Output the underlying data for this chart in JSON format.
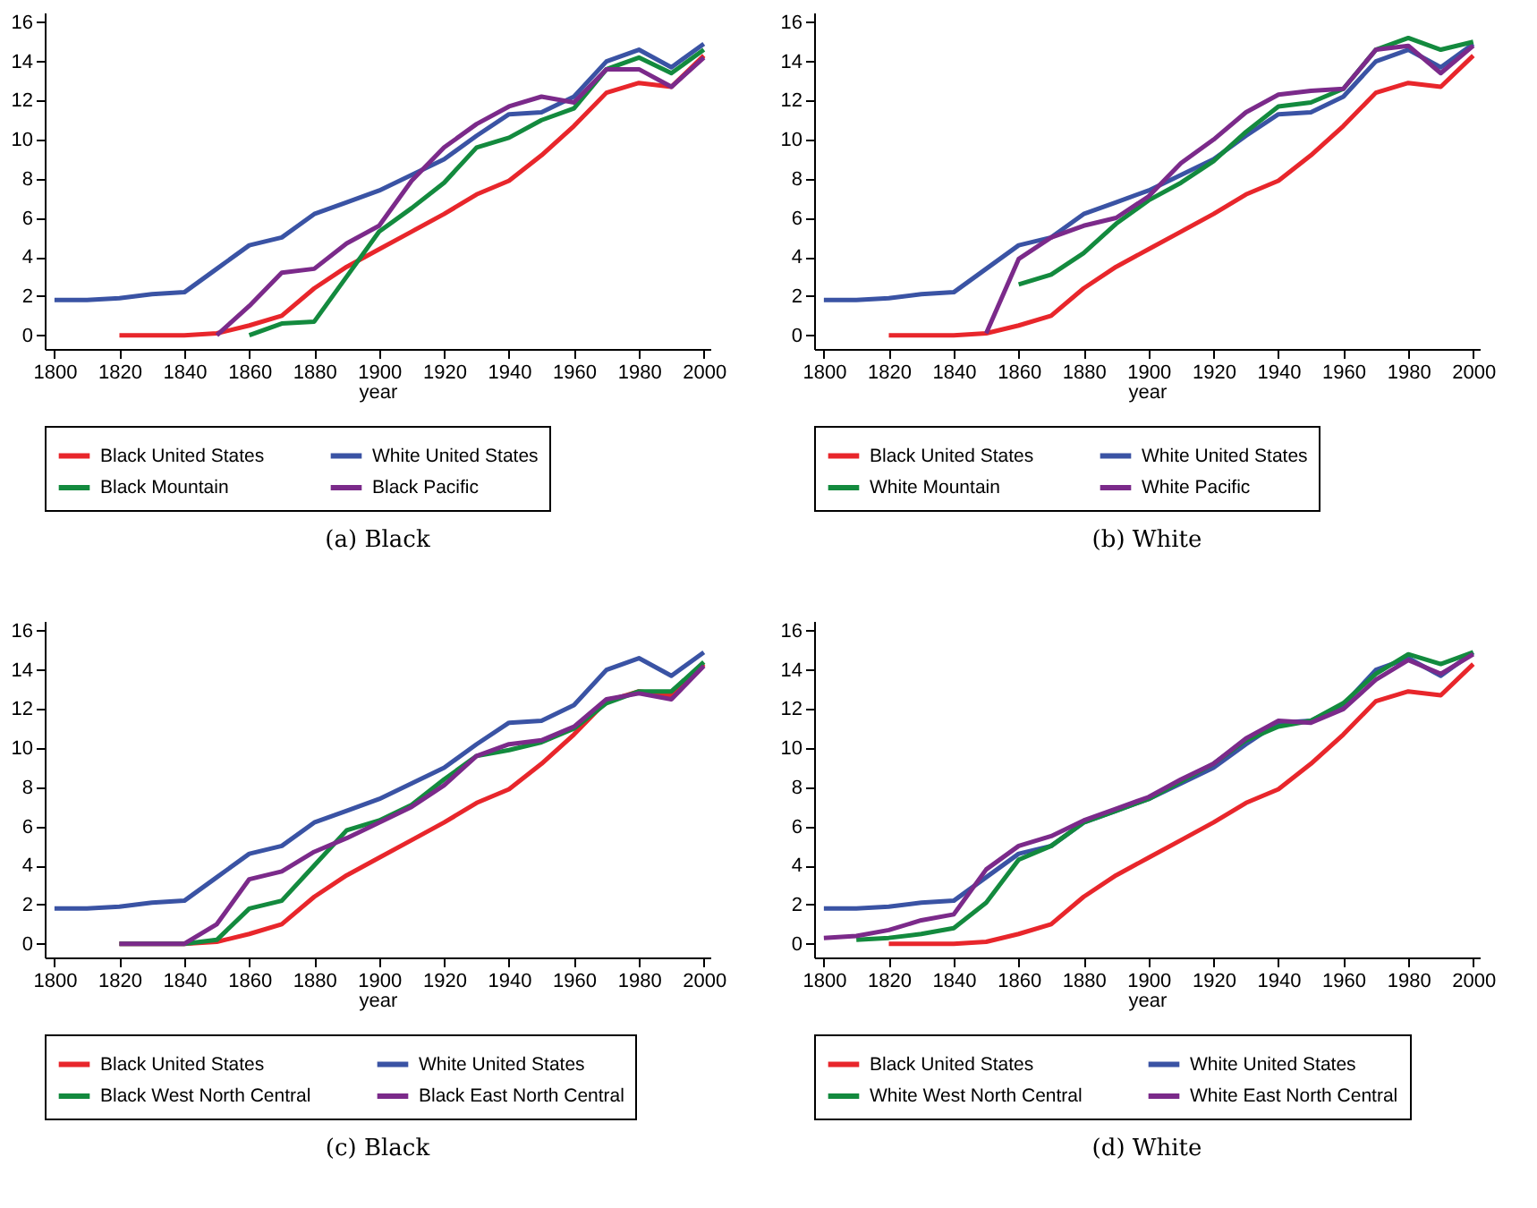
{
  "chart_data": [
    {
      "type": "line",
      "title": "(a) Black",
      "xlabel": "year",
      "x": [
        1800,
        1810,
        1820,
        1830,
        1840,
        1850,
        1860,
        1870,
        1880,
        1890,
        1900,
        1910,
        1920,
        1930,
        1940,
        1950,
        1960,
        1970,
        1980,
        1990,
        2000
      ],
      "xlim": [
        1797,
        2002
      ],
      "xticks": [
        1800,
        1820,
        1840,
        1860,
        1880,
        1900,
        1920,
        1940,
        1960,
        1980,
        2000
      ],
      "ylim": [
        -0.7,
        16.5
      ],
      "yticks": [
        0,
        2,
        4,
        6,
        8,
        10,
        12,
        14,
        16
      ],
      "grid": false,
      "legend": "bottom",
      "line_style": "solid",
      "marker": "none",
      "series": [
        {
          "name": "Black United States",
          "color": "#e8262b",
          "values": [
            null,
            null,
            0,
            0,
            0,
            0.1,
            0.5,
            1.0,
            2.4,
            3.5,
            4.4,
            5.3,
            6.2,
            7.2,
            7.9,
            9.2,
            10.7,
            12.4,
            12.9,
            12.7,
            14.3
          ]
        },
        {
          "name": "White United States",
          "color": "#3a53a4",
          "values": [
            1.8,
            1.8,
            1.9,
            2.1,
            2.2,
            3.4,
            4.6,
            5.0,
            6.2,
            6.8,
            7.4,
            8.2,
            9.0,
            10.2,
            11.3,
            11.4,
            12.2,
            14.0,
            14.6,
            13.7,
            14.9
          ]
        },
        {
          "name": "Black Mountain",
          "color": "#138a3e",
          "values": [
            null,
            null,
            null,
            null,
            null,
            null,
            0,
            0.6,
            0.7,
            3.0,
            5.3,
            6.5,
            7.8,
            9.6,
            10.1,
            11.0,
            11.6,
            13.6,
            14.2,
            13.4,
            14.6
          ]
        },
        {
          "name": "Black Pacific",
          "color": "#7b2a8a",
          "values": [
            null,
            null,
            null,
            null,
            null,
            0,
            1.5,
            3.2,
            3.4,
            4.7,
            5.6,
            7.9,
            9.6,
            10.8,
            11.7,
            12.2,
            11.9,
            13.6,
            13.6,
            12.7,
            14.2
          ]
        }
      ]
    },
    {
      "type": "line",
      "title": "(b) White",
      "xlabel": "year",
      "x": [
        1800,
        1810,
        1820,
        1830,
        1840,
        1850,
        1860,
        1870,
        1880,
        1890,
        1900,
        1910,
        1920,
        1930,
        1940,
        1950,
        1960,
        1970,
        1980,
        1990,
        2000
      ],
      "xlim": [
        1797,
        2002
      ],
      "xticks": [
        1800,
        1820,
        1840,
        1860,
        1880,
        1900,
        1920,
        1940,
        1960,
        1980,
        2000
      ],
      "ylim": [
        -0.7,
        16.5
      ],
      "yticks": [
        0,
        2,
        4,
        6,
        8,
        10,
        12,
        14,
        16
      ],
      "grid": false,
      "legend": "bottom",
      "line_style": "solid",
      "marker": "none",
      "series": [
        {
          "name": "Black United States",
          "color": "#e8262b",
          "values": [
            null,
            null,
            0,
            0,
            0,
            0.1,
            0.5,
            1.0,
            2.4,
            3.5,
            4.4,
            5.3,
            6.2,
            7.2,
            7.9,
            9.2,
            10.7,
            12.4,
            12.9,
            12.7,
            14.3
          ]
        },
        {
          "name": "White United States",
          "color": "#3a53a4",
          "values": [
            1.8,
            1.8,
            1.9,
            2.1,
            2.2,
            3.4,
            4.6,
            5.0,
            6.2,
            6.8,
            7.4,
            8.2,
            9.0,
            10.2,
            11.3,
            11.4,
            12.2,
            14.0,
            14.6,
            13.7,
            14.9
          ]
        },
        {
          "name": "White Mountain",
          "color": "#138a3e",
          "values": [
            null,
            null,
            null,
            null,
            null,
            null,
            2.6,
            3.1,
            4.2,
            5.7,
            6.9,
            7.8,
            8.9,
            10.4,
            11.7,
            11.9,
            12.6,
            14.6,
            15.2,
            14.6,
            15.0
          ]
        },
        {
          "name": "White Pacific",
          "color": "#7b2a8a",
          "values": [
            null,
            null,
            null,
            null,
            null,
            0.1,
            3.9,
            5.0,
            5.6,
            6.0,
            7.1,
            8.8,
            10.0,
            11.4,
            12.3,
            12.5,
            12.6,
            14.6,
            14.8,
            13.4,
            14.8
          ]
        }
      ]
    },
    {
      "type": "line",
      "title": "(c) Black",
      "xlabel": "year",
      "x": [
        1800,
        1810,
        1820,
        1830,
        1840,
        1850,
        1860,
        1870,
        1880,
        1890,
        1900,
        1910,
        1920,
        1930,
        1940,
        1950,
        1960,
        1970,
        1980,
        1990,
        2000
      ],
      "xlim": [
        1797,
        2002
      ],
      "xticks": [
        1800,
        1820,
        1840,
        1860,
        1880,
        1900,
        1920,
        1940,
        1960,
        1980,
        2000
      ],
      "ylim": [
        -0.7,
        16.5
      ],
      "yticks": [
        0,
        2,
        4,
        6,
        8,
        10,
        12,
        14,
        16
      ],
      "grid": false,
      "legend": "bottom",
      "line_style": "solid",
      "marker": "none",
      "series": [
        {
          "name": "Black United States",
          "color": "#e8262b",
          "values": [
            null,
            null,
            0,
            0,
            0,
            0.1,
            0.5,
            1.0,
            2.4,
            3.5,
            4.4,
            5.3,
            6.2,
            7.2,
            7.9,
            9.2,
            10.7,
            12.4,
            12.9,
            12.7,
            14.3
          ]
        },
        {
          "name": "White United States",
          "color": "#3a53a4",
          "values": [
            1.8,
            1.8,
            1.9,
            2.1,
            2.2,
            3.4,
            4.6,
            5.0,
            6.2,
            6.8,
            7.4,
            8.2,
            9.0,
            10.2,
            11.3,
            11.4,
            12.2,
            14.0,
            14.6,
            13.7,
            14.9
          ]
        },
        {
          "name": "Black West North Central",
          "color": "#138a3e",
          "values": [
            null,
            null,
            0,
            0,
            0,
            0.2,
            1.8,
            2.2,
            4.0,
            5.8,
            6.3,
            7.1,
            8.4,
            9.6,
            9.9,
            10.3,
            11.0,
            12.3,
            12.9,
            12.9,
            14.4
          ]
        },
        {
          "name": "Black East North Central",
          "color": "#7b2a8a",
          "values": [
            null,
            null,
            0,
            0,
            0,
            1.0,
            3.3,
            3.7,
            4.7,
            5.4,
            6.2,
            7.0,
            8.1,
            9.6,
            10.2,
            10.4,
            11.1,
            12.5,
            12.8,
            12.5,
            14.2
          ]
        }
      ]
    },
    {
      "type": "line",
      "title": "(d) White",
      "xlabel": "year",
      "x": [
        1800,
        1810,
        1820,
        1830,
        1840,
        1850,
        1860,
        1870,
        1880,
        1890,
        1900,
        1910,
        1920,
        1930,
        1940,
        1950,
        1960,
        1970,
        1980,
        1990,
        2000
      ],
      "xlim": [
        1797,
        2002
      ],
      "xticks": [
        1800,
        1820,
        1840,
        1860,
        1880,
        1900,
        1920,
        1940,
        1960,
        1980,
        2000
      ],
      "ylim": [
        -0.7,
        16.5
      ],
      "yticks": [
        0,
        2,
        4,
        6,
        8,
        10,
        12,
        14,
        16
      ],
      "grid": false,
      "legend": "bottom",
      "line_style": "solid",
      "marker": "none",
      "series": [
        {
          "name": "Black United States",
          "color": "#e8262b",
          "values": [
            null,
            null,
            0,
            0,
            0,
            0.1,
            0.5,
            1.0,
            2.4,
            3.5,
            4.4,
            5.3,
            6.2,
            7.2,
            7.9,
            9.2,
            10.7,
            12.4,
            12.9,
            12.7,
            14.3
          ]
        },
        {
          "name": "White United States",
          "color": "#3a53a4",
          "values": [
            1.8,
            1.8,
            1.9,
            2.1,
            2.2,
            3.4,
            4.6,
            5.0,
            6.2,
            6.8,
            7.4,
            8.2,
            9.0,
            10.2,
            11.3,
            11.4,
            12.2,
            14.0,
            14.6,
            13.7,
            14.9
          ]
        },
        {
          "name": "White West North Central",
          "color": "#138a3e",
          "values": [
            null,
            0.2,
            0.3,
            0.5,
            0.8,
            2.1,
            4.3,
            5.0,
            6.2,
            6.8,
            7.4,
            8.3,
            9.2,
            10.4,
            11.1,
            11.4,
            12.3,
            13.8,
            14.8,
            14.3,
            14.9
          ]
        },
        {
          "name": "White East North Central",
          "color": "#7b2a8a",
          "values": [
            0.3,
            0.4,
            0.7,
            1.2,
            1.5,
            3.8,
            5.0,
            5.5,
            6.3,
            6.9,
            7.5,
            8.4,
            9.2,
            10.5,
            11.4,
            11.3,
            12.0,
            13.5,
            14.5,
            13.8,
            14.8
          ]
        }
      ]
    }
  ]
}
